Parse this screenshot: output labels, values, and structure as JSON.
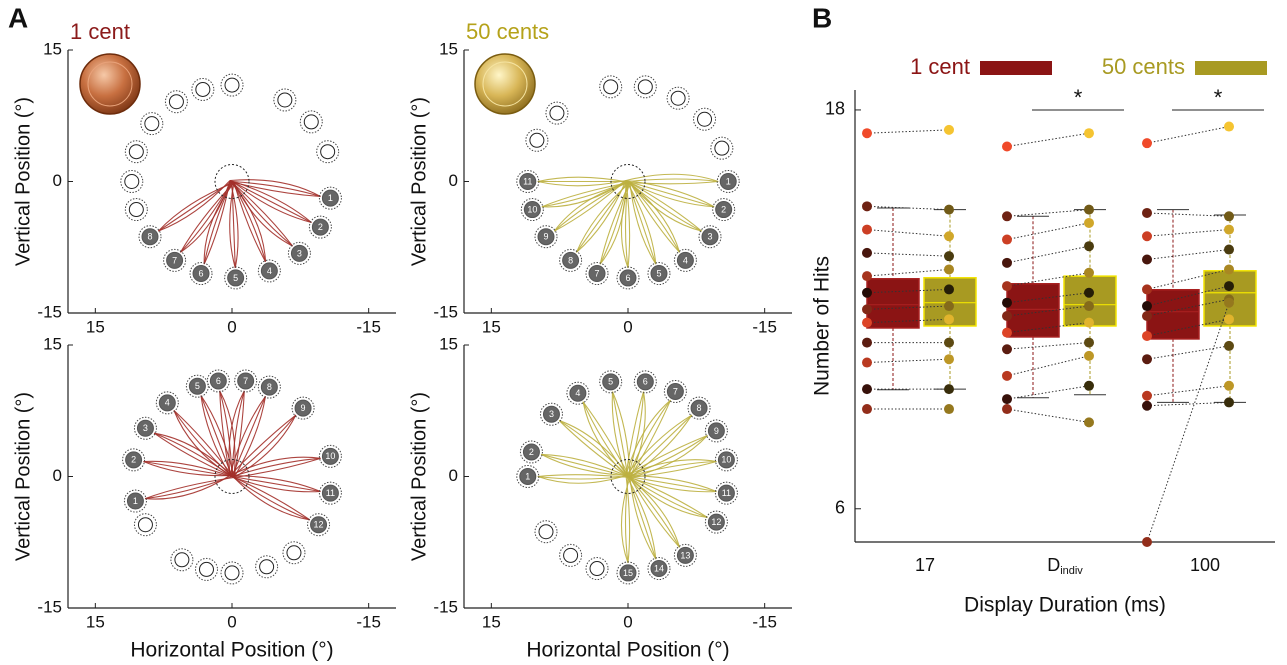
{
  "panel_labels": [
    "A",
    "B"
  ],
  "chart_data": [
    {
      "type": "trajectory",
      "title": "1 cent",
      "title_color": "#8b1a1a",
      "color": "#a3302a",
      "ylabel": "Vertical Position (°)",
      "xlim": [
        18,
        -18
      ],
      "ylim": [
        -15,
        15
      ],
      "xticks": [
        15,
        0,
        -15
      ],
      "yticks": [
        -15,
        0,
        15
      ],
      "targets": {
        "x": [
          -10.8,
          -9.7,
          -7.4,
          -4.1,
          -0.4,
          3.4,
          6.3,
          9.0,
          10.5,
          11.0,
          10.5,
          8.8,
          6.1,
          3.2,
          0,
          -5.8,
          -8.7,
          -10.5
        ],
        "y": [
          -1.9,
          -5.2,
          -8.2,
          -10.2,
          -11.0,
          -10.5,
          -9.0,
          -6.3,
          -3.2,
          0,
          3.4,
          6.6,
          9.1,
          10.5,
          11,
          9.3,
          6.8,
          3.4
        ],
        "labels": [
          "1",
          "2",
          "3",
          "4",
          "5",
          "6",
          "7",
          "8",
          null,
          null,
          null,
          null,
          null,
          null,
          null,
          null,
          null,
          null
        ]
      }
    },
    {
      "type": "trajectory",
      "title": "50 cents",
      "title_color": "#b5a21a",
      "color": "#bcb040",
      "ylabel": "Vertical Position (°)",
      "xlim": [
        18,
        -18
      ],
      "ylim": [
        -15,
        15
      ],
      "xticks": [
        15,
        0,
        -15
      ],
      "yticks": [
        -15,
        0,
        15
      ],
      "targets": {
        "x": [
          -11,
          -10.5,
          -9.0,
          -6.3,
          -3.4,
          0,
          3.4,
          6.3,
          9.0,
          10.5,
          11,
          10.0,
          7.8,
          1.9,
          -1.9,
          -5.5,
          -8.4,
          -10.3
        ],
        "y": [
          0,
          -3.2,
          -6.3,
          -9.0,
          -10.5,
          -11,
          -10.5,
          -9.0,
          -6.3,
          -3.2,
          0,
          4.7,
          7.8,
          10.8,
          10.8,
          9.5,
          7.1,
          3.8
        ],
        "labels": [
          "1",
          "2",
          "3",
          "4",
          "5",
          "6",
          "7",
          "8",
          "9",
          "10",
          "11",
          null,
          null,
          null,
          null,
          null,
          null,
          null
        ]
      }
    },
    {
      "type": "trajectory",
      "color": "#a3302a",
      "ylabel": "Vertical Position (°)",
      "xlabel": "Horizontal Position (°)",
      "xlim": [
        18,
        -18
      ],
      "ylim": [
        -15,
        15
      ],
      "xticks": [
        15,
        0,
        -15
      ],
      "yticks": [
        -15,
        0,
        15
      ],
      "targets": {
        "x": [
          10.6,
          10.8,
          9.5,
          7.1,
          3.8,
          1.5,
          -1.5,
          -4.1,
          -7.8,
          -10.8,
          -10.8,
          -9.5,
          9.5,
          5.5,
          2.8,
          0,
          -3.8,
          -6.8
        ],
        "y": [
          -2.8,
          1.9,
          5.5,
          8.4,
          10.3,
          10.9,
          10.9,
          10.2,
          7.8,
          2.3,
          -1.9,
          -5.5,
          -5.5,
          -9.5,
          -10.6,
          -11,
          -10.3,
          -8.7
        ],
        "labels": [
          "1",
          "2",
          "3",
          "4",
          "5",
          "6",
          "7",
          "8",
          "9",
          "10",
          "11",
          "12",
          null,
          null,
          null,
          null,
          null,
          null
        ]
      }
    },
    {
      "type": "trajectory",
      "color": "#bcb040",
      "ylabel": "Vertical Position (°)",
      "xlabel": "Horizontal Position (°)",
      "xlim": [
        18,
        -18
      ],
      "ylim": [
        -15,
        15
      ],
      "xticks": [
        15,
        0,
        -15
      ],
      "yticks": [
        -15,
        0,
        15
      ],
      "targets": {
        "x": [
          11,
          10.6,
          8.4,
          5.5,
          1.9,
          -1.9,
          -5.2,
          -7.8,
          -9.7,
          -10.8,
          -10.8,
          -9.7,
          -6.3,
          -3.4,
          0,
          9.0,
          6.3,
          3.4
        ],
        "y": [
          0,
          2.8,
          7.1,
          9.5,
          10.8,
          10.8,
          9.7,
          7.8,
          5.2,
          1.9,
          -1.9,
          -5.2,
          -9.0,
          -10.5,
          -11,
          -6.3,
          -9.0,
          -10.5
        ],
        "labels": [
          "1",
          "2",
          "3",
          "4",
          "5",
          "6",
          "7",
          "8",
          "9",
          "10",
          "11",
          "12",
          "13",
          "14",
          "15",
          null,
          null,
          null
        ]
      }
    },
    {
      "type": "box",
      "ylabel": "Number of  Hits",
      "xlabel": "Display Duration (ms)",
      "categories": [
        "17",
        {
          "text": "D",
          "subscript": "indiv"
        },
        "100"
      ],
      "significance": [
        null,
        "*",
        "*"
      ],
      "ylim": [
        5,
        18.6
      ],
      "yticks": [
        6,
        18
      ],
      "series": [
        {
          "name": "1 cent",
          "color": "#8b1414",
          "edge_color": "#a82020",
          "point_color": "#f04a2a",
          "q1": [
            11.44,
            11.17,
            11.11
          ],
          "median": [
            12.14,
            12.0,
            11.93
          ],
          "q3": [
            12.92,
            12.77,
            12.59
          ],
          "whisker_low": [
            9.58,
            9.34,
            9.2
          ],
          "whisker_high": [
            15.05,
            14.8,
            15.0
          ],
          "points": [
            [
              17.3,
              15.1,
              14.4,
              13.7,
              13.0,
              12.5,
              12.0,
              11.6,
              11.0,
              10.4,
              9.6,
              9.0
            ],
            [
              16.9,
              14.8,
              14.1,
              13.4,
              12.7,
              12.2,
              11.8,
              11.3,
              10.8,
              10.0,
              9.3,
              9.0
            ],
            [
              17.0,
              14.9,
              14.2,
              13.5,
              12.6,
              12.1,
              11.8,
              11.2,
              10.5,
              9.4,
              9.1,
              5.0
            ]
          ]
        },
        {
          "name": "50 cents",
          "color": "#a89a22",
          "edge_color": "#f2e400",
          "point_color": "#f5c431",
          "q1": [
            11.5,
            11.5,
            11.5
          ],
          "median": [
            12.2,
            12.14,
            12.5
          ],
          "q3": [
            12.95,
            13.0,
            13.16
          ],
          "whisker_low": [
            9.6,
            9.43,
            9.2
          ],
          "whisker_high": [
            15.0,
            15.0,
            14.84
          ],
          "points": [
            [
              17.4,
              15.0,
              14.2,
              13.6,
              13.2,
              12.6,
              12.1,
              11.7,
              11.0,
              10.5,
              9.6,
              9.0
            ],
            [
              17.3,
              15.0,
              14.6,
              13.9,
              13.1,
              12.5,
              12.1,
              11.6,
              11.0,
              10.6,
              9.7,
              8.6
            ],
            [
              17.5,
              14.8,
              14.4,
              13.8,
              13.2,
              12.7,
              12.3,
              11.7,
              10.9,
              9.7,
              9.2,
              12.2
            ]
          ]
        }
      ]
    }
  ]
}
